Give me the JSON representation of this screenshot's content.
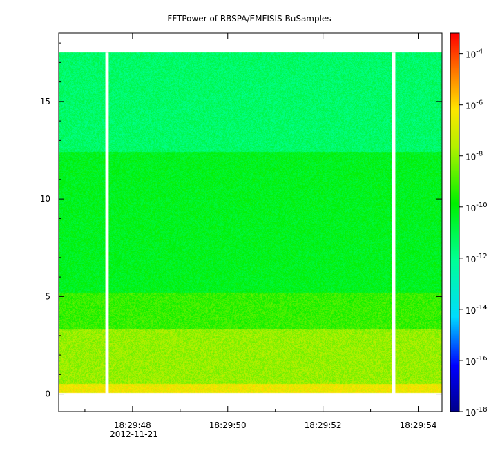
{
  "chart_data": {
    "type": "heatmap",
    "title": "FFTPower of RBSPA/EMFISIS  BuSamples",
    "x_axis": {
      "ticks": [
        "18:29:48",
        "18:29:50",
        "18:29:52",
        "18:29:54"
      ],
      "tick_seconds": [
        48,
        50,
        52,
        54
      ],
      "range_seconds": [
        46.45,
        54.5
      ],
      "date_label": "2012-11-21"
    },
    "y_axis": {
      "ticks": [
        "0",
        "5",
        "10",
        "15"
      ],
      "tick_values": [
        0,
        5,
        10,
        15
      ],
      "range": [
        -0.9,
        18.5
      ],
      "data_range": [
        0,
        17.5
      ]
    },
    "colorbar": {
      "scale": "log",
      "range_exponent": [
        -18,
        -3.2
      ],
      "ticks": [
        "10",
        "10",
        "10",
        "10",
        "10",
        "10",
        "10",
        "10"
      ],
      "tick_exponents": [
        "-18",
        "-16",
        "-14",
        "-12",
        "-10",
        "-8",
        "-6",
        "-4"
      ]
    },
    "data_gaps_seconds": [
      [
        47.43,
        47.5
      ],
      [
        53.45,
        53.52
      ]
    ],
    "spectral_bands": [
      {
        "freq_range": [
          0.05,
          0.5
        ],
        "level_exponent": -6.5
      },
      {
        "freq_range": [
          0.5,
          3.3
        ],
        "level_exponent": -8.0
      },
      {
        "freq_range": [
          3.3,
          5.2
        ],
        "level_exponent": -9.2
      },
      {
        "freq_range": [
          5.2,
          12.4
        ],
        "level_exponent": -10.3
      },
      {
        "freq_range": [
          12.4,
          17.5
        ],
        "level_exponent": -11.4
      }
    ]
  }
}
